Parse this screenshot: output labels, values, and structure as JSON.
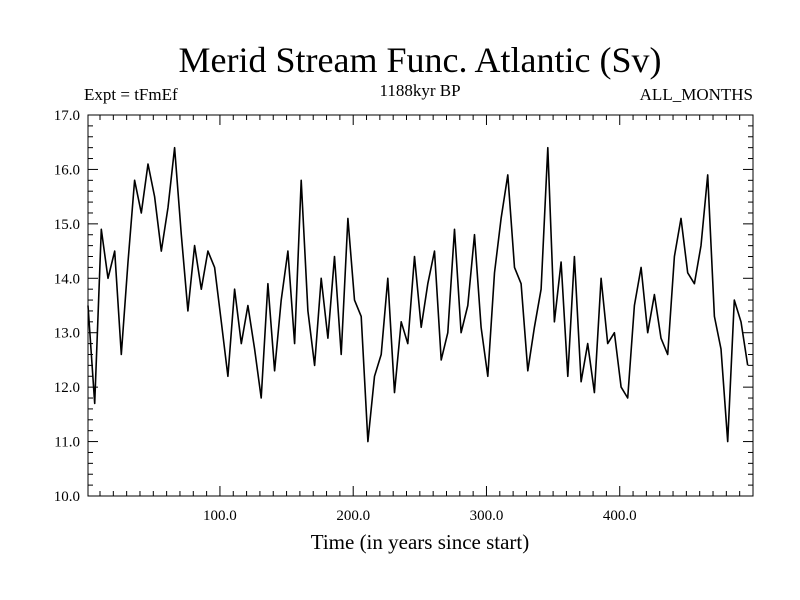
{
  "chart_data": {
    "type": "line",
    "title": "Merid Stream Func. Atlantic (Sv)",
    "subtitle_left": "Expt = tFmEf",
    "subtitle_center": "1188kyr BP",
    "subtitle_right": "ALL_MONTHS",
    "xlabel": "Time (in years since start)",
    "ylabel": "",
    "xlim": [
      1,
      500
    ],
    "ylim": [
      10.0,
      17.0
    ],
    "xticks": [
      100,
      200,
      300,
      400
    ],
    "xtick_labels": [
      "100.0",
      "200.0",
      "300.0",
      "400.0"
    ],
    "yticks": [
      10,
      11,
      12,
      13,
      14,
      15,
      16,
      17
    ],
    "ytick_labels": [
      "10.0",
      "11.0",
      "12.0",
      "13.0",
      "14.0",
      "15.0",
      "16.0",
      "17.0"
    ],
    "series": [
      {
        "name": "Merid Stream Func. Atlantic",
        "x_start": 1,
        "x_step": 5,
        "values": [
          13.5,
          11.7,
          14.9,
          14.0,
          14.5,
          12.6,
          14.3,
          15.8,
          15.2,
          16.1,
          15.5,
          14.5,
          15.3,
          16.4,
          14.8,
          13.4,
          14.6,
          13.8,
          14.5,
          14.2,
          13.2,
          12.2,
          13.8,
          12.8,
          13.5,
          12.7,
          11.8,
          13.9,
          12.3,
          13.6,
          14.5,
          12.8,
          15.8,
          13.4,
          12.4,
          14.0,
          12.9,
          14.4,
          12.6,
          15.1,
          13.6,
          13.3,
          11.0,
          12.2,
          12.6,
          14.0,
          11.9,
          13.2,
          12.8,
          14.4,
          13.1,
          13.9,
          14.5,
          12.5,
          13.0,
          14.9,
          13.0,
          13.5,
          14.8,
          13.1,
          12.2,
          14.1,
          15.1,
          15.9,
          14.2,
          13.9,
          12.3,
          13.1,
          13.8,
          16.4,
          13.2,
          14.3,
          12.2,
          14.4,
          12.1,
          12.8,
          11.9,
          14.0,
          12.8,
          13.0,
          12.0,
          11.8,
          13.5,
          14.2,
          13.0,
          13.7,
          12.9,
          12.6,
          14.4,
          15.1,
          14.1,
          13.9,
          14.6,
          15.9,
          13.3,
          12.7,
          11.0,
          13.6,
          13.2,
          12.4
        ]
      }
    ],
    "line_color": "#000000"
  }
}
